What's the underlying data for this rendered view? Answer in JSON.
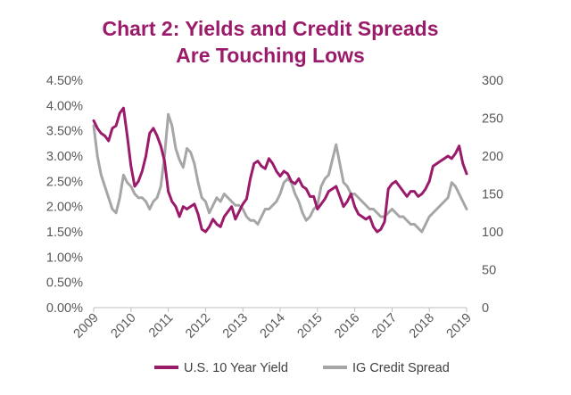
{
  "chart_data": {
    "type": "line",
    "title_line1": "Chart 2:  Yields  and Credit Spreads",
    "title_line2": "Are Touching  Lows",
    "y_left": {
      "ylim": [
        0,
        4.5
      ],
      "ticks": [
        0,
        0.5,
        1,
        1.5,
        2,
        2.5,
        3,
        3.5,
        4,
        4.5
      ],
      "tick_labels": [
        "0.00%",
        "0.50%",
        "1.00%",
        "1.50%",
        "2.00%",
        "2.50%",
        "3.00%",
        "3.50%",
        "4.00%",
        "4.50%"
      ]
    },
    "y_right": {
      "ylim": [
        0,
        300
      ],
      "ticks": [
        0,
        50,
        100,
        150,
        200,
        250,
        300
      ],
      "tick_labels": [
        "0",
        "50",
        "100",
        "150",
        "200",
        "250",
        "300"
      ]
    },
    "x_axis": {
      "xlim": [
        2009,
        2019
      ],
      "ticks": [
        2009,
        2010,
        2011,
        2012,
        2013,
        2014,
        2015,
        2016,
        2017,
        2018,
        2019
      ],
      "tick_labels": [
        "2009",
        "2010",
        "2011",
        "2012",
        "2013",
        "2014",
        "2015",
        "2016",
        "2017",
        "2018",
        "2019"
      ]
    },
    "grid": false,
    "legend_position": "bottom",
    "series": [
      {
        "name": "U.S. 10 Year Yield",
        "axis": "left",
        "color": "#9B1B6B",
        "x": [
          2009.0,
          2009.1,
          2009.2,
          2009.3,
          2009.4,
          2009.5,
          2009.6,
          2009.7,
          2009.8,
          2009.9,
          2010.0,
          2010.1,
          2010.2,
          2010.3,
          2010.4,
          2010.5,
          2010.6,
          2010.7,
          2010.8,
          2010.9,
          2011.0,
          2011.1,
          2011.2,
          2011.3,
          2011.4,
          2011.5,
          2011.6,
          2011.7,
          2011.8,
          2011.9,
          2012.0,
          2012.1,
          2012.2,
          2012.3,
          2012.4,
          2012.5,
          2012.6,
          2012.7,
          2012.8,
          2012.9,
          2013.0,
          2013.1,
          2013.2,
          2013.3,
          2013.4,
          2013.5,
          2013.6,
          2013.7,
          2013.8,
          2013.9,
          2014.0,
          2014.1,
          2014.2,
          2014.3,
          2014.4,
          2014.5,
          2014.6,
          2014.7,
          2014.8,
          2014.9,
          2015.0,
          2015.1,
          2015.2,
          2015.3,
          2015.4,
          2015.5,
          2015.6,
          2015.7,
          2015.8,
          2015.9,
          2016.0,
          2016.1,
          2016.2,
          2016.3,
          2016.4,
          2016.5,
          2016.6,
          2016.7,
          2016.8,
          2016.9,
          2017.0,
          2017.1,
          2017.2,
          2017.3,
          2017.4,
          2017.5,
          2017.6,
          2017.7,
          2017.8,
          2017.9,
          2018.0,
          2018.1,
          2018.2,
          2018.3,
          2018.4,
          2018.5,
          2018.6,
          2018.7,
          2018.8,
          2018.9,
          2019.0
        ],
        "values": [
          3.7,
          3.55,
          3.45,
          3.4,
          3.3,
          3.55,
          3.6,
          3.85,
          3.95,
          3.4,
          2.8,
          2.4,
          2.5,
          2.7,
          3.0,
          3.45,
          3.55,
          3.4,
          3.2,
          2.9,
          2.3,
          2.1,
          2.0,
          1.8,
          2.0,
          1.95,
          2.0,
          2.05,
          1.85,
          1.55,
          1.5,
          1.6,
          1.75,
          1.65,
          1.6,
          1.8,
          1.9,
          2.0,
          1.75,
          1.9,
          2.05,
          2.15,
          2.55,
          2.85,
          2.9,
          2.8,
          2.75,
          2.95,
          2.85,
          2.7,
          2.6,
          2.7,
          2.65,
          2.5,
          2.45,
          2.55,
          2.4,
          2.35,
          2.2,
          2.2,
          1.95,
          2.05,
          2.15,
          2.3,
          2.35,
          2.4,
          2.2,
          2.0,
          2.1,
          2.25,
          2.0,
          1.85,
          1.8,
          1.75,
          1.8,
          1.6,
          1.5,
          1.55,
          1.7,
          2.35,
          2.45,
          2.5,
          2.4,
          2.3,
          2.2,
          2.3,
          2.3,
          2.2,
          2.25,
          2.35,
          2.5,
          2.8,
          2.85,
          2.9,
          2.95,
          3.0,
          2.95,
          3.05,
          3.2,
          2.85,
          2.65
        ]
      },
      {
        "name": "IG Credit Spread",
        "axis": "right",
        "color": "#A6A6A6",
        "x": [
          2009.0,
          2009.1,
          2009.2,
          2009.3,
          2009.4,
          2009.5,
          2009.6,
          2009.7,
          2009.8,
          2009.9,
          2010.0,
          2010.1,
          2010.2,
          2010.3,
          2010.4,
          2010.5,
          2010.6,
          2010.7,
          2010.8,
          2010.9,
          2011.0,
          2011.1,
          2011.2,
          2011.3,
          2011.4,
          2011.5,
          2011.6,
          2011.7,
          2011.8,
          2011.9,
          2012.0,
          2012.1,
          2012.2,
          2012.3,
          2012.4,
          2012.5,
          2012.6,
          2012.7,
          2012.8,
          2012.9,
          2013.0,
          2013.1,
          2013.2,
          2013.3,
          2013.4,
          2013.5,
          2013.6,
          2013.7,
          2013.8,
          2013.9,
          2014.0,
          2014.1,
          2014.2,
          2014.3,
          2014.4,
          2014.5,
          2014.6,
          2014.7,
          2014.8,
          2014.9,
          2015.0,
          2015.1,
          2015.2,
          2015.3,
          2015.4,
          2015.5,
          2015.6,
          2015.7,
          2015.8,
          2015.9,
          2016.0,
          2016.1,
          2016.2,
          2016.3,
          2016.4,
          2016.5,
          2016.6,
          2016.7,
          2016.8,
          2016.9,
          2017.0,
          2017.1,
          2017.2,
          2017.3,
          2017.4,
          2017.5,
          2017.6,
          2017.7,
          2017.8,
          2017.9,
          2018.0,
          2018.1,
          2018.2,
          2018.3,
          2018.4,
          2018.5,
          2018.6,
          2018.7,
          2018.8,
          2018.9,
          2019.0
        ],
        "values": [
          240,
          200,
          175,
          160,
          145,
          130,
          125,
          145,
          175,
          165,
          160,
          150,
          145,
          145,
          140,
          130,
          140,
          145,
          160,
          200,
          255,
          240,
          210,
          195,
          185,
          210,
          205,
          190,
          165,
          145,
          140,
          125,
          135,
          145,
          140,
          150,
          145,
          140,
          135,
          135,
          130,
          120,
          115,
          115,
          110,
          120,
          130,
          130,
          135,
          140,
          150,
          165,
          170,
          165,
          150,
          140,
          125,
          115,
          120,
          130,
          135,
          160,
          170,
          175,
          195,
          215,
          190,
          165,
          160,
          150,
          150,
          145,
          140,
          135,
          130,
          130,
          125,
          120,
          120,
          125,
          130,
          125,
          120,
          120,
          115,
          110,
          110,
          105,
          100,
          110,
          120,
          125,
          130,
          135,
          140,
          145,
          165,
          160,
          150,
          140,
          130
        ]
      }
    ]
  }
}
